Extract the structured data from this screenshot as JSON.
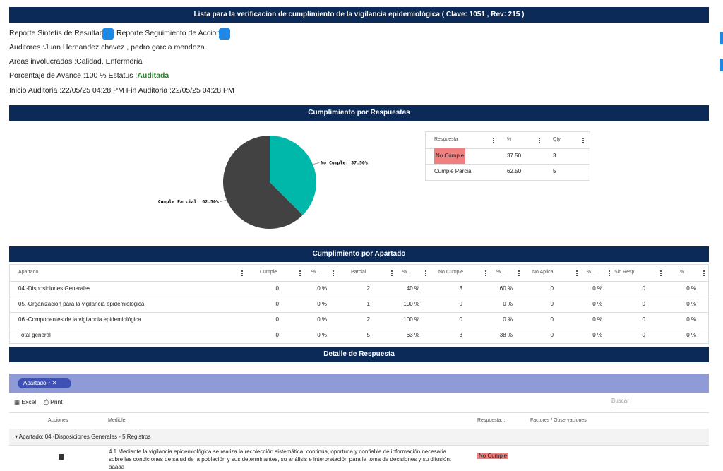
{
  "header": {
    "title": "Lista para la verificacion de cumplimiento de la vigilancia epidemiológica ( Clave: 1051 , Rev: 215 )"
  },
  "info": {
    "report1": "Reporte Sintetis de Resultados",
    "report2": "Reporte Seguimiento de Acciones",
    "auditors": "Auditores :Juan Hernandez chavez , pedro garcia mendoza",
    "areas": "Areas involucradas :Calidad, Enfermería",
    "progress": "Porcentaje de Avance :100 % Estatus :",
    "status": "Auditada",
    "dates": "Inicio Auditoria :22/05/25 04:28 PM Fin Auditoria :22/05/25 04:28 PM"
  },
  "responses": {
    "title": "Cumplimiento por Respuestas",
    "pie": {
      "slices": [
        {
          "label": "No Cumple: 37.50%",
          "value": 37.5,
          "color": "#00b8a9"
        },
        {
          "label": "Cumple Parcial: 62.50%",
          "value": 62.5,
          "color": "#424242"
        }
      ]
    },
    "table": {
      "columns": [
        "Respuesta",
        "%",
        "Qty"
      ],
      "rows": [
        [
          "No Cumple",
          "37.50",
          "3"
        ],
        [
          "Cumple Parcial",
          "62.50",
          "5"
        ]
      ]
    }
  },
  "sections": {
    "title": "Cumplimiento por Apartado",
    "columns": [
      "Apartado",
      "Cumple",
      "%...",
      "Parcial",
      "%...",
      "No Cumple",
      "%...",
      "No Aplica",
      "%...",
      "Sin Resp",
      "%"
    ],
    "rows": [
      [
        "04.-Disposiciones Generales",
        "0",
        "0 %",
        "2",
        "40 %",
        "3",
        "60 %",
        "0",
        "0 %",
        "0",
        "0 %"
      ],
      [
        "05.-Organización para la vigilancia epidemiológica",
        "0",
        "0 %",
        "1",
        "100 %",
        "0",
        "0 %",
        "0",
        "0 %",
        "0",
        "0 %"
      ],
      [
        "06.-Componentes de la vigilancia epidemiológica",
        "0",
        "0 %",
        "2",
        "100 %",
        "0",
        "0 %",
        "0",
        "0 %",
        "0",
        "0 %"
      ],
      [
        "Total general",
        "0",
        "0 %",
        "5",
        "63 %",
        "3",
        "38 %",
        "0",
        "0 %",
        "0",
        "0 %"
      ]
    ]
  },
  "detail": {
    "title": "Detalle de Respuesta",
    "group_chip": "Apartado",
    "toolbar": [
      "Excel",
      "Print"
    ],
    "search_placeholder": "Buscar",
    "columns": [
      "Acciones",
      "Medible",
      "Respuesta...",
      "Factores / Observaciones"
    ],
    "group_row": "Apartado: 04.-Disposiciones Generales - 5 Registros",
    "rows": [
      {
        "medible": "4.1 Mediante la vigilancia epidemiológica se realiza la recolección sistemática, continúa, oportuna y confiable de información necesaria sobre las condiciones de salud de la población y sus determinantes, su análisis e interpretación para la toma de decisiones y su difusión. aaaaa",
        "respuesta": "No Cumple"
      }
    ]
  }
}
